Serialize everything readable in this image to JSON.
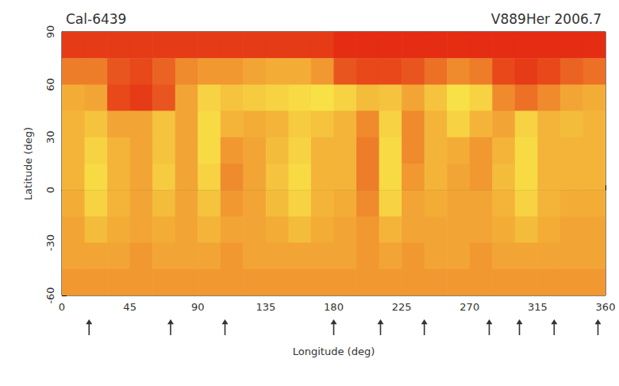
{
  "chart_data": {
    "type": "heatmap",
    "title": "V889Her 2006.7",
    "subtitle": "Cal-6439",
    "x_label": "Longitude (deg)",
    "y_label": "Latitude (deg)",
    "xlim": [
      0,
      360
    ],
    "xticks": [
      0,
      45,
      90,
      135,
      180,
      225,
      270,
      315,
      360
    ],
    "ylim": [
      -60,
      90
    ],
    "yticks": [
      -60,
      -30,
      0,
      30,
      60,
      90
    ],
    "cell_size": [
      15,
      15
    ],
    "cell_longitudes": [
      7.5,
      22.5,
      37.5,
      52.5,
      67.5,
      82.5,
      97.5,
      112.5,
      127.5,
      142.5,
      157.5,
      172.5,
      187.5,
      202.5,
      217.5,
      232.5,
      247.5,
      262.5,
      277.5,
      292.5,
      307.5,
      322.5,
      337.5,
      352.5
    ],
    "cell_latitudes": [
      82.5,
      67.5,
      52.5,
      37.5,
      22.5,
      7.5,
      -7.5,
      -22.5,
      -37.5,
      -52.5
    ],
    "cells": [
      [
        1,
        1,
        1,
        1,
        1,
        1,
        1,
        1,
        1,
        1,
        1,
        1,
        0.5,
        0.5,
        0.5,
        0.5,
        0.5,
        0.5,
        0.5,
        0.5,
        0.5,
        0.5,
        0.5,
        0.5
      ],
      [
        3.5,
        3.5,
        2,
        1.5,
        2.5,
        4,
        4.5,
        4.5,
        5,
        5.5,
        5.5,
        4.5,
        2,
        1.5,
        1.5,
        2,
        3,
        4,
        3.5,
        1.5,
        1,
        1.5,
        2.5,
        3
      ],
      [
        5.5,
        5,
        1.5,
        1,
        2,
        5,
        8,
        7,
        7.5,
        8,
        8.5,
        9,
        8,
        6.5,
        7,
        5,
        7,
        9,
        8,
        4,
        3,
        4,
        5,
        5.5
      ],
      [
        6,
        7,
        5,
        5,
        7,
        5,
        8.5,
        6,
        5.5,
        6,
        7.5,
        7,
        6,
        4,
        8,
        4,
        6,
        8,
        6,
        5,
        8,
        6,
        6.5,
        6
      ],
      [
        6,
        8,
        6,
        5,
        7,
        5,
        8.5,
        4.5,
        5,
        6.5,
        8,
        6,
        6,
        3.5,
        8.5,
        4,
        6,
        5.5,
        4.5,
        6,
        8.5,
        6,
        6,
        6
      ],
      [
        6,
        8.5,
        6,
        5,
        7.5,
        5,
        8,
        4,
        5,
        7,
        8.5,
        6,
        6,
        3.5,
        8.5,
        4.5,
        6,
        5,
        4.5,
        6.5,
        8.5,
        6,
        6,
        6
      ],
      [
        5.5,
        8,
        6,
        5,
        6.5,
        5,
        7,
        4.5,
        5,
        6.5,
        8,
        6,
        5.5,
        4,
        8,
        5,
        5.5,
        5,
        5,
        6,
        8,
        6,
        5.5,
        5.5
      ],
      [
        5,
        6.5,
        5.5,
        5,
        5.5,
        5,
        6,
        5,
        5,
        5.5,
        6.5,
        5.5,
        5,
        4.5,
        6,
        5,
        5,
        5,
        5,
        5.5,
        6.5,
        5.5,
        5,
        5
      ],
      [
        5,
        5,
        5,
        4.5,
        5,
        5,
        5,
        4.5,
        5,
        5,
        5,
        5,
        5,
        4.5,
        5,
        4.5,
        5,
        5,
        4.5,
        5,
        5,
        5,
        5,
        5
      ],
      [
        4.5,
        4.5,
        4.5,
        4.5,
        4.5,
        4.5,
        4.5,
        4.5,
        4.5,
        4.5,
        4.5,
        4.5,
        4.5,
        4.5,
        4.5,
        4.5,
        4.5,
        4.5,
        4.5,
        4.5,
        4.5,
        4.5,
        4.5,
        4.5
      ]
    ],
    "value_range": [
      0,
      10
    ],
    "observation_longitudes": [
      18,
      72,
      108,
      180,
      211,
      240,
      283,
      303,
      326,
      355
    ]
  }
}
